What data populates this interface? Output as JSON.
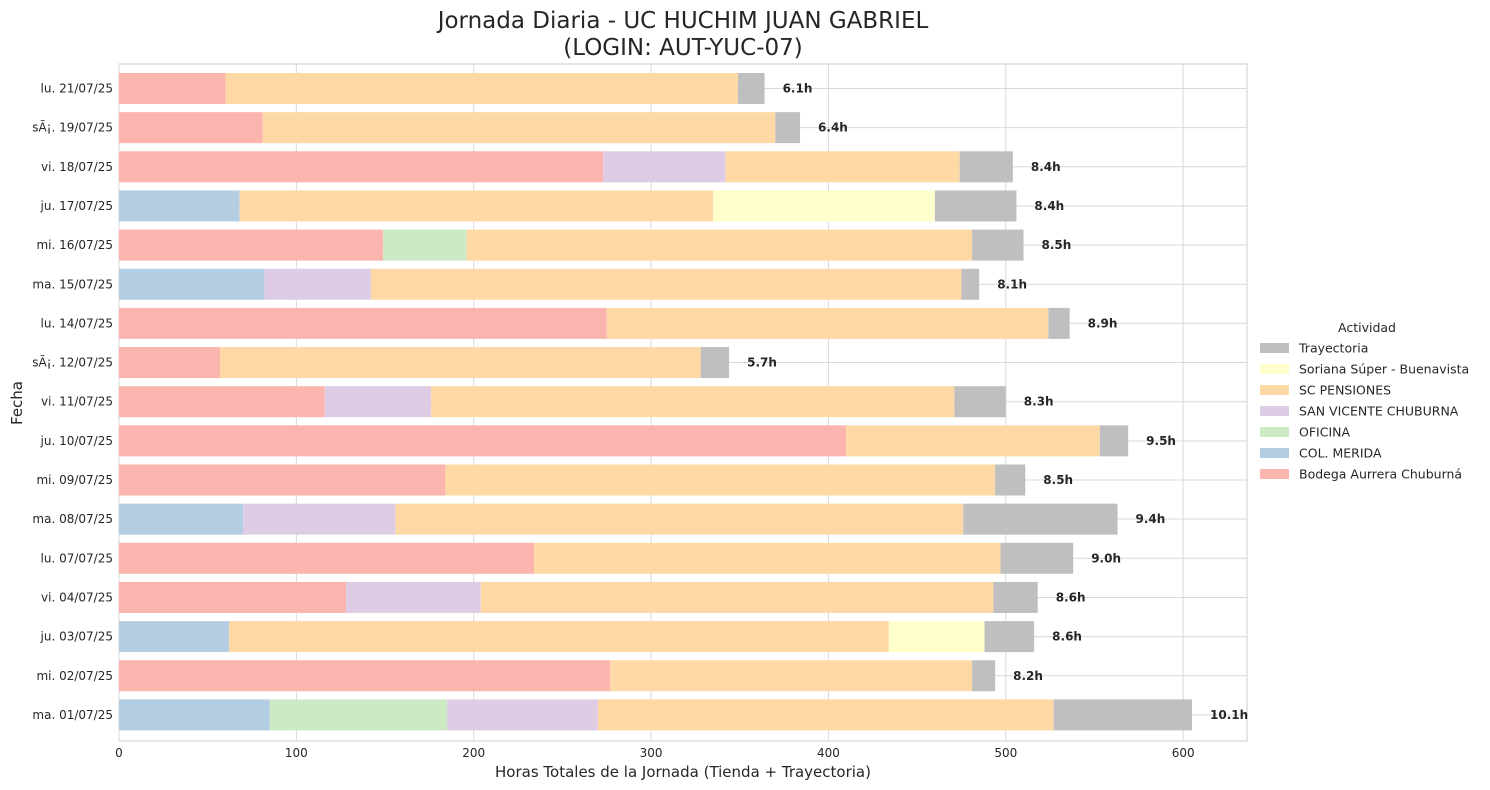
{
  "chart_data": {
    "type": "bar",
    "orientation": "horizontal",
    "stacked": true,
    "title": "Jornada Diaria - UC HUCHIM JUAN GABRIEL",
    "subtitle": "(LOGIN: AUT-YUC-07)",
    "xlabel": "Horas Totales de la Jornada (Tienda + Trayectoria)",
    "ylabel": "Fecha",
    "xlim": [
      0,
      636
    ],
    "xticks": [
      0,
      100,
      200,
      300,
      400,
      500,
      600
    ],
    "grid": true,
    "legend": {
      "title": "Actividad",
      "placement": "center-right"
    },
    "categories": [
      "lu. 21/07/25",
      "sÃ¡. 19/07/25",
      "vi. 18/07/25",
      "ju. 17/07/25",
      "mi. 16/07/25",
      "ma. 15/07/25",
      "lu. 14/07/25",
      "sÃ¡. 12/07/25",
      "vi. 11/07/25",
      "ju. 10/07/25",
      "mi. 09/07/25",
      "ma. 08/07/25",
      "lu. 07/07/25",
      "vi. 04/07/25",
      "ju. 03/07/25",
      "mi. 02/07/25",
      "ma. 01/07/25"
    ],
    "series": [
      {
        "name": "Bodega Aurrera Chuburná",
        "color": "#fbb4ae",
        "values": [
          60,
          81,
          273,
          0,
          149,
          0,
          275,
          57,
          116,
          410,
          184,
          0,
          234,
          128,
          0,
          277,
          0
        ]
      },
      {
        "name": "COL. MERIDA",
        "color": "#b3cde3",
        "values": [
          0,
          0,
          0,
          68,
          0,
          82,
          0,
          0,
          0,
          0,
          0,
          70,
          0,
          0,
          62,
          0,
          85
        ]
      },
      {
        "name": "OFICINA",
        "color": "#ccebc5",
        "values": [
          0,
          0,
          0,
          0,
          47,
          0,
          0,
          0,
          0,
          0,
          0,
          0,
          0,
          0,
          0,
          0,
          100
        ]
      },
      {
        "name": "SAN VICENTE CHUBURNA",
        "color": "#decbe4",
        "values": [
          0,
          0,
          69,
          0,
          0,
          60,
          0,
          0,
          60,
          0,
          0,
          86,
          0,
          76,
          0,
          0,
          85
        ]
      },
      {
        "name": "SC PENSIONES",
        "color": "#fed9a6",
        "values": [
          289,
          289,
          132,
          267,
          285,
          333,
          249,
          271,
          295,
          143,
          310,
          320,
          263,
          289,
          372,
          204,
          257
        ]
      },
      {
        "name": "Soriana Súper - Buenavista",
        "color": "#ffffcc",
        "values": [
          0,
          0,
          0,
          125,
          0,
          0,
          0,
          0,
          0,
          0,
          0,
          0,
          0,
          0,
          54,
          0,
          0
        ]
      },
      {
        "name": "Trayectoria",
        "color": "#bfbfbf",
        "values": [
          15,
          14,
          30,
          46,
          29,
          10,
          12,
          16,
          29,
          16,
          17,
          87,
          41,
          25,
          28,
          13,
          78
        ]
      }
    ],
    "totals_labels": [
      "6.1h",
      "6.4h",
      "8.4h",
      "8.4h",
      "8.5h",
      "8.1h",
      "8.9h",
      "5.7h",
      "8.3h",
      "9.5h",
      "8.5h",
      "9.4h",
      "9.0h",
      "8.6h",
      "8.6h",
      "8.2h",
      "10.1h"
    ]
  }
}
